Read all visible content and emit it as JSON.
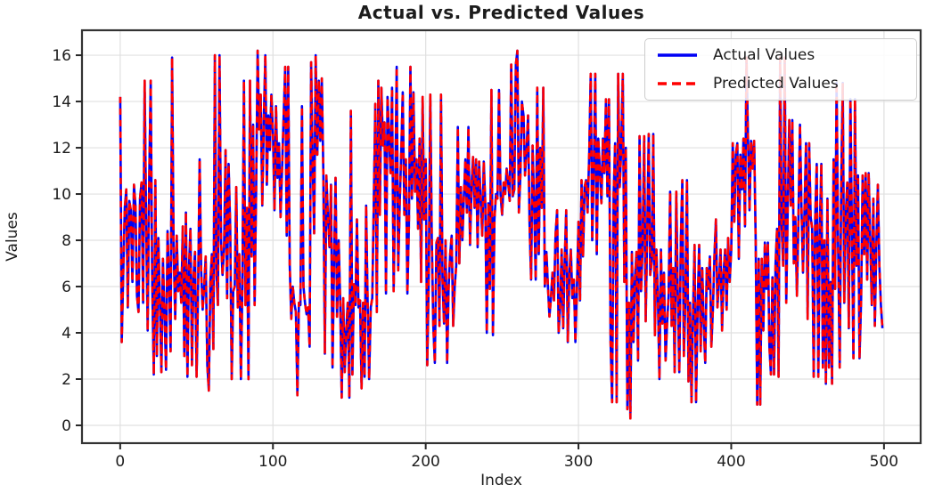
{
  "chart_data": {
    "type": "line",
    "title": "Actual vs. Predicted Values",
    "xlabel": "Index",
    "ylabel": "Values",
    "xlim": [
      -25,
      524
    ],
    "ylim": [
      -0.77,
      17.08
    ],
    "xticks": [
      0,
      100,
      200,
      300,
      400,
      500
    ],
    "yticks": [
      0,
      2,
      4,
      6,
      8,
      10,
      12,
      14,
      16
    ],
    "grid": true,
    "grid_color": "#e0e0e0",
    "spine_color": "#333333",
    "tick_color": "#262626",
    "text_color": "#1c1c1c",
    "legend_position": "upper right",
    "x_start": 0,
    "x_step": 1,
    "series": [
      {
        "name": "Actual Values",
        "color": "#0000f5",
        "style": "solid",
        "values": [
          14.2,
          3.6,
          6.6,
          9.4,
          10.2,
          5.1,
          9.7,
          9.3,
          6.2,
          10.4,
          9.5,
          5.6,
          4.9,
          9.8,
          10.5,
          5.3,
          14.9,
          8.7,
          4.1,
          10.6,
          14.9,
          6.1,
          2.2,
          10.6,
          3.0,
          8.1,
          5.4,
          2.3,
          7.2,
          4.8,
          2.4,
          8.4,
          6.3,
          3.2,
          15.9,
          7.7,
          4.6,
          8.2,
          5.8,
          6.6,
          5.3,
          8.6,
          3.0,
          9.2,
          2.1,
          6.8,
          8.5,
          2.6,
          6.4,
          7.5,
          2.1,
          5.9,
          11.5,
          6.7,
          5.0,
          6.0,
          7.3,
          2.6,
          1.5,
          6.2,
          7.4,
          3.3,
          16.0,
          6.6,
          5.2,
          16.0,
          8.0,
          6.5,
          7.6,
          11.9,
          5.5,
          11.3,
          8.6,
          2.0,
          5.8,
          6.0,
          10.3,
          5.1,
          7.4,
          2.0,
          6.1,
          14.9,
          5.2,
          9.4,
          2.0,
          14.9,
          7.3,
          13.0,
          5.2,
          10.2,
          16.2,
          12.8,
          14.3,
          9.5,
          13.2,
          16.0,
          10.4,
          13.4,
          11.9,
          14.3,
          12.6,
          9.3,
          13.8,
          10.7,
          12.2,
          9.0,
          11.1,
          13.4,
          15.5,
          8.2,
          15.5,
          6.9,
          4.6,
          6.0,
          5.3,
          4.9,
          1.3,
          5.3,
          5.2,
          13.8,
          6.0,
          5.3,
          4.8,
          5.1,
          3.4,
          15.7,
          11.4,
          8.3,
          16.0,
          11.7,
          14.9,
          12.3,
          15.0,
          10.9,
          3.1,
          10.8,
          9.0,
          7.7,
          10.4,
          2.5,
          7.0,
          10.7,
          4.7,
          8.0,
          5.4,
          1.2,
          5.5,
          2.3,
          4.1,
          5.3,
          1.2,
          13.6,
          2.2,
          6.1,
          5.2,
          8.9,
          5.1,
          5.4,
          1.6,
          5.3,
          2.1,
          9.5,
          5.3,
          2.0,
          5.1,
          5.5,
          9.6,
          13.9,
          4.9,
          14.9,
          9.1,
          14.6,
          12.1,
          13.1,
          5.7,
          14.2,
          12.5,
          10.9,
          14.6,
          5.8,
          10.1,
          15.5,
          6.7,
          9.6,
          11.8,
          14.4,
          9.1,
          11.5,
          5.7,
          8.6,
          15.5,
          9.8,
          14.4,
          10.1,
          11.5,
          8.5,
          12.4,
          6.2,
          14.2,
          8.9,
          11.5,
          2.6,
          6.4,
          14.3,
          8.0,
          4.3,
          2.7,
          7.9,
          8.1,
          4.3,
          14.3,
          6.3,
          4.4,
          8.0,
          2.7,
          6.0,
          7.4,
          8.2,
          4.3,
          6.0,
          6.9,
          12.9,
          7.0,
          10.3,
          8.0,
          9.9,
          11.5,
          9.2,
          12.9,
          7.8,
          10.3,
          11.6,
          9.4,
          11.5,
          7.7,
          11.4,
          9.7,
          8.2,
          11.4,
          9.6,
          4.0,
          9.6,
          5.9,
          14.5,
          3.9,
          8.9,
          10.0,
          9.8,
          14.5,
          10.0,
          9.1,
          10.5,
          10.0,
          11.1,
          10.5,
          9.7,
          15.6,
          9.9,
          10.2,
          15.6,
          16.2,
          9.2,
          10.8,
          14.0,
          13.4,
          10.8,
          11.9,
          13.4,
          8.7,
          6.3,
          12.1,
          9.4,
          6.3,
          14.6,
          7.4,
          12.0,
          9.4,
          14.6,
          6.0,
          7.5,
          6.0,
          4.7,
          5.5,
          6.6,
          5.4,
          8.2,
          9.3,
          4.0,
          5.1,
          7.6,
          4.2,
          7.1,
          9.3,
          3.6,
          6.5,
          7.6,
          5.5,
          6.3,
          3.6,
          5.9,
          8.8,
          5.4,
          10.6,
          7.3,
          10.3,
          10.6,
          9.2,
          11.7,
          15.2,
          8.0,
          11.0,
          15.2,
          7.4,
          12.4,
          11.0,
          9.6,
          12.4,
          10.9,
          14.1,
          9.9,
          14.1,
          3.6,
          1.0,
          10.0,
          12.2,
          1.0,
          15.2,
          10.3,
          12.0,
          15.2,
          6.2,
          12.0,
          0.7,
          5.3,
          0.3,
          7.5,
          3.6,
          6.4,
          7.5,
          2.8,
          12.5,
          5.8,
          7.7,
          12.5,
          4.5,
          8.4,
          12.6,
          6.5,
          7.1,
          12.6,
          3.9,
          7.6,
          5.5,
          2.0,
          7.6,
          4.4,
          6.6,
          2.8,
          4.4,
          5.6,
          10.1,
          4.3,
          6.8,
          2.3,
          10.1,
          5.6,
          2.3,
          8.0,
          10.6,
          3.0,
          5.3,
          10.6,
          1.9,
          5.3,
          1.0,
          4.8,
          7.8,
          1.0,
          5.2,
          7.8,
          3.2,
          6.8,
          4.4,
          2.7,
          6.8,
          5.9,
          7.3,
          3.4,
          5.0,
          7.3,
          8.9,
          5.1,
          6.2,
          7.6,
          4.1,
          6.6,
          7.6,
          5.0,
          8.1,
          6.2,
          7.6,
          12.2,
          8.8,
          11.7,
          12.2,
          7.2,
          11.7,
          10.2,
          12.4,
          8.6,
          15.9,
          12.4,
          9.3,
          12.3,
          11.1,
          12.3,
          8.0,
          0.9,
          7.2,
          0.9,
          7.2,
          4.1,
          7.9,
          5.9,
          7.9,
          3.4,
          2.2,
          6.4,
          2.2,
          7.0,
          8.5,
          2.1,
          15.9,
          8.7,
          6.9,
          15.9,
          5.3,
          9.5,
          13.2,
          9.5,
          13.2,
          7.0,
          9.0,
          5.6,
          9.0,
          13.0,
          9.4,
          6.6,
          9.4,
          12.2,
          4.6,
          12.2,
          9.0,
          8.5,
          2.1,
          9.0,
          11.3,
          2.1,
          8.6,
          11.3,
          2.5,
          8.0,
          1.8,
          9.8,
          2.5,
          6.2,
          1.8,
          11.5,
          5.9,
          14.8,
          7.8,
          2.5,
          10.5,
          14.8,
          5.3,
          9.1,
          10.5,
          4.2,
          14.1,
          8.4,
          2.9,
          14.1,
          6.9,
          10.8,
          2.9,
          5.4,
          10.8,
          7.4,
          10.9,
          6.3,
          10.9,
          8.1,
          5.2,
          9.8,
          4.3,
          7.8,
          10.4,
          6.9,
          5.2,
          4.2
        ]
      },
      {
        "name": "Predicted Values",
        "color": "#ff0000",
        "style": "dashed",
        "values": "same_as_series_0",
        "note": "predicted line overlaps actual line almost exactly"
      }
    ]
  }
}
